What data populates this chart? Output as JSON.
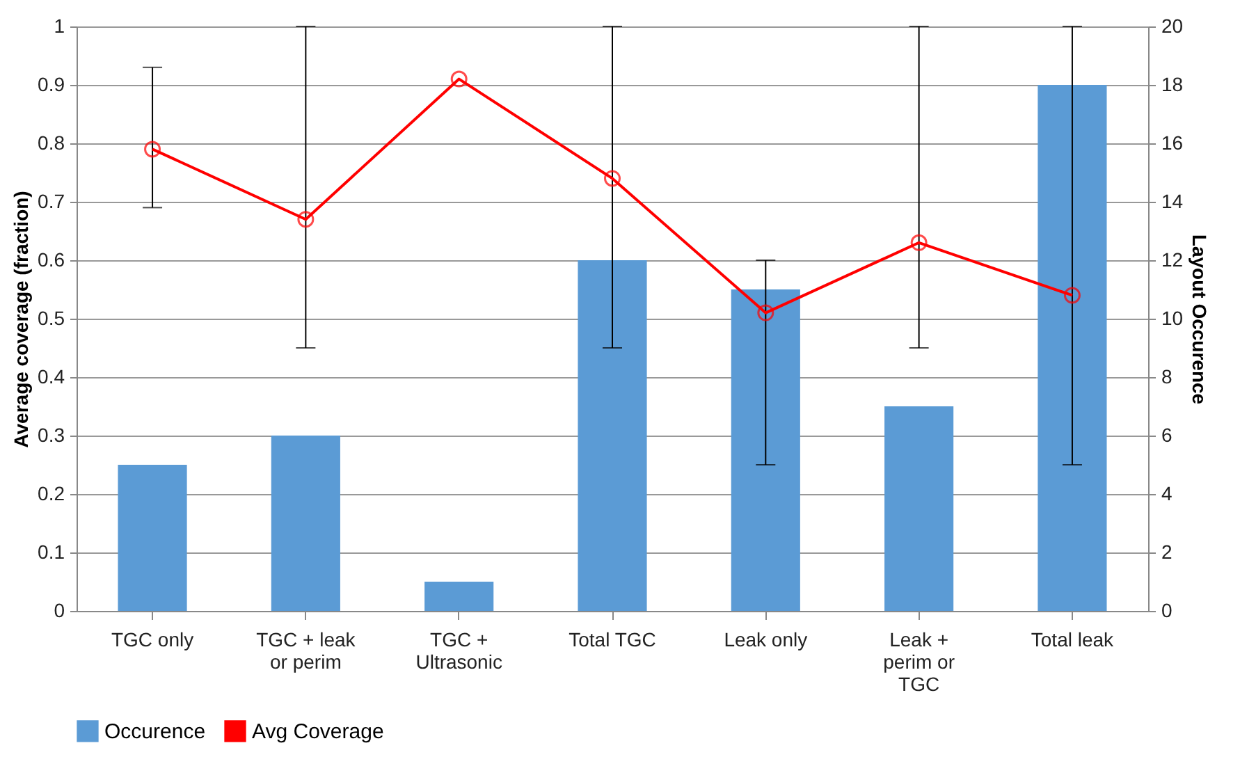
{
  "chart_data": {
    "type": "bar",
    "categories": [
      "TGC only",
      "TGC + leak or perim",
      "TGC + Ultrasonic",
      "Total TGC",
      "Leak only",
      "Leak + perim or TGC",
      "Total leak"
    ],
    "ylabel": "Average coverage (fraction)",
    "y2label": "Layout Occurence",
    "ylim": [
      0,
      1
    ],
    "yticks": [
      0,
      0.1,
      0.2,
      0.3,
      0.4,
      0.5,
      0.6,
      0.7,
      0.8,
      0.9,
      1
    ],
    "y2lim": [
      0,
      20
    ],
    "y2ticks": [
      0,
      2,
      4,
      6,
      8,
      10,
      12,
      14,
      16,
      18,
      20
    ],
    "series": [
      {
        "name": "Occurence",
        "axis": "y2",
        "color": "#5b9bd5",
        "values": [
          5,
          6,
          1,
          12,
          11,
          7,
          18
        ]
      },
      {
        "name": "Avg Coverage",
        "type": "line",
        "color": "#ff0000",
        "values": [
          0.79,
          0.67,
          0.91,
          0.74,
          0.51,
          0.63,
          0.54
        ],
        "errors": [
          [
            0.69,
            0.93
          ],
          [
            0.45,
            1
          ],
          null,
          [
            0.45,
            1
          ],
          [
            0.25,
            0.6
          ],
          [
            0.45,
            1
          ],
          [
            0.25,
            1
          ]
        ]
      }
    ],
    "marker": "circle",
    "line_style": "solid",
    "grid": "y",
    "legend": "bottom"
  }
}
